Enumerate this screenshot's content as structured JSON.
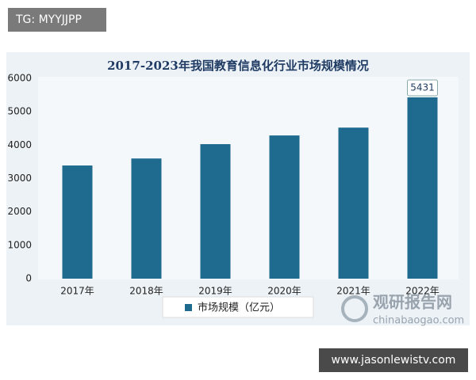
{
  "chart_data": {
    "type": "bar",
    "title": "2017-2023年我国教育信息化行业市场规模情况",
    "categories": [
      "2017年",
      "2018年",
      "2019年",
      "2020年",
      "2021年",
      "2022年"
    ],
    "series": [
      {
        "name": "市场规模（亿元）",
        "color": "#1f6a8f",
        "values": [
          3390,
          3600,
          4030,
          4290,
          4525,
          5431
        ],
        "value_labels": [
          null,
          null,
          null,
          null,
          null,
          "5431"
        ]
      }
    ],
    "ylim": [
      0,
      6000
    ],
    "yticks": [
      0,
      1000,
      2000,
      3000,
      4000,
      5000,
      6000
    ],
    "grid": false,
    "legend": "bottom"
  },
  "overlays": {
    "tag": "TG: MYYJJPP",
    "site": "www.jasonlewistv.com",
    "logo": "观研报告网",
    "logo_url": "chinabaogao.com"
  }
}
